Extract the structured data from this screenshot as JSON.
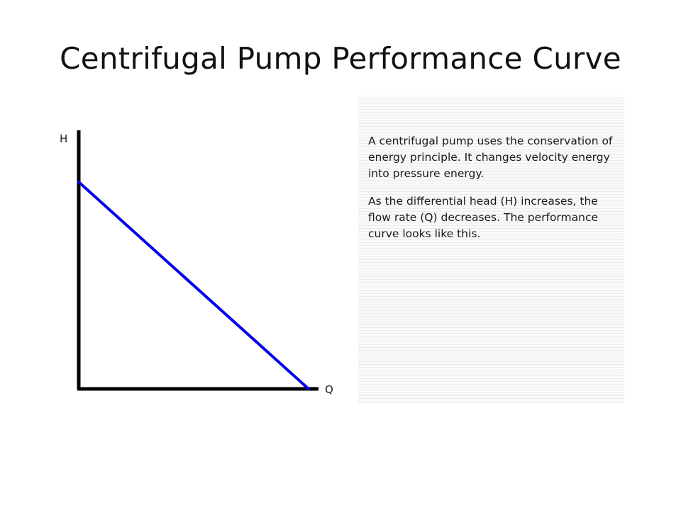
{
  "slide": {
    "title": "Centrifugal Pump Performance Curve",
    "description": {
      "paragraph_1": "A centrifugal pump uses the conservation of energy principle. It changes velocity energy into pressure energy.",
      "paragraph_2": "As the differential head (H) increases, the flow rate (Q) decreases. The performance curve looks like this."
    }
  },
  "chart_data": {
    "type": "line",
    "xlabel": "Q",
    "ylabel": "H",
    "xlim": [
      0,
      1
    ],
    "ylim": [
      0,
      1
    ],
    "grid": false,
    "series": [
      {
        "x": [
          0,
          1
        ],
        "y": [
          0.8,
          0
        ],
        "color": "#0000ee"
      }
    ],
    "axis_color": "#000000"
  }
}
